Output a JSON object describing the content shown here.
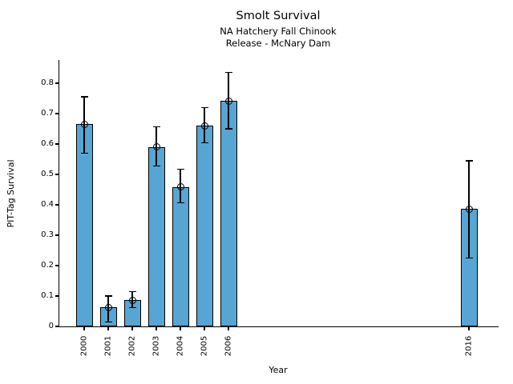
{
  "figure": {
    "title": "Smolt Survival",
    "subtitle_line1": "NA Hatchery Fall Chinook",
    "subtitle_line2": "Release - McNary Dam",
    "xlabel": "Year",
    "ylabel": "PIT-Tag Survival"
  },
  "chart_data": {
    "type": "bar",
    "title": "Smolt Survival",
    "subtitle": [
      "NA Hatchery Fall Chinook",
      "Release - McNary Dam"
    ],
    "xlabel": "Year",
    "ylabel": "PIT-Tag Survival",
    "ylim": [
      0,
      0.88
    ],
    "x_axis_years_shown": [
      "2000",
      "2001",
      "2002",
      "2003",
      "2004",
      "2005",
      "2006",
      "2016"
    ],
    "yticks": [
      0,
      0.1,
      0.2,
      0.3,
      0.4,
      0.5,
      0.6,
      0.7,
      0.8
    ],
    "ytick_labels": [
      "0",
      "0.1",
      "0.2",
      "0.3",
      "0.4",
      "0.5",
      "0.6",
      "0.7",
      "0.8"
    ],
    "grid": false,
    "legend": false,
    "bar_color": "#57A5D3",
    "edge_color": "#000000",
    "error_bar_color": "#000000",
    "marker": "open-circle",
    "series": [
      {
        "name": "PIT-Tag Survival",
        "points": [
          {
            "year": "2000",
            "value": 0.665,
            "ci_low": 0.57,
            "ci_high": 0.755
          },
          {
            "year": "2001",
            "value": 0.063,
            "ci_low": 0.015,
            "ci_high": 0.1
          },
          {
            "year": "2002",
            "value": 0.086,
            "ci_low": 0.062,
            "ci_high": 0.115
          },
          {
            "year": "2003",
            "value": 0.59,
            "ci_low": 0.528,
            "ci_high": 0.656
          },
          {
            "year": "2004",
            "value": 0.458,
            "ci_low": 0.406,
            "ci_high": 0.517
          },
          {
            "year": "2005",
            "value": 0.66,
            "ci_low": 0.604,
            "ci_high": 0.72
          },
          {
            "year": "2006",
            "value": 0.742,
            "ci_low": 0.65,
            "ci_high": 0.835
          },
          {
            "year": "2016",
            "value": 0.386,
            "ci_low": 0.225,
            "ci_high": 0.545
          }
        ]
      }
    ]
  }
}
